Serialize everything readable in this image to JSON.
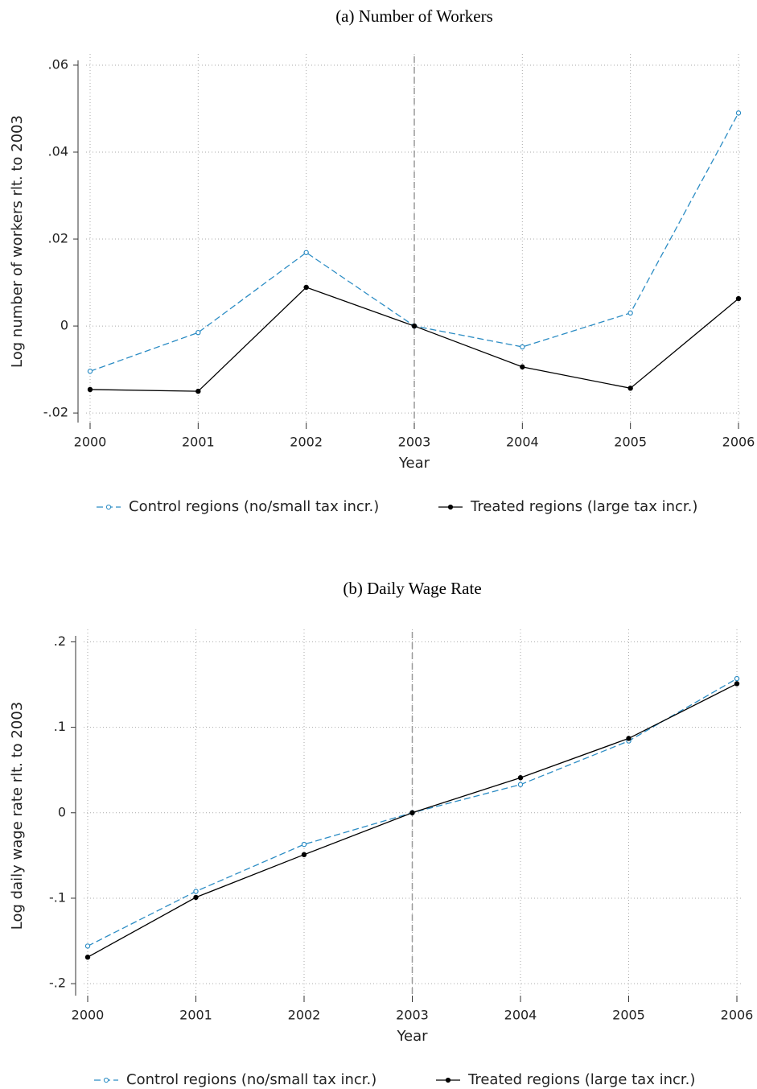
{
  "chart_data": [
    {
      "type": "line",
      "title": "(a) Number of Workers",
      "x_label": "Year",
      "y_label": "Log number of workers rlt. to 2003",
      "x": [
        2000,
        2001,
        2002,
        2003,
        2004,
        2005,
        2006
      ],
      "series": [
        {
          "name": "Control regions (no/small tax incr.)",
          "color": "#2b8cc4",
          "linestyle": "dashed",
          "marker": "hollow",
          "values": [
            -0.0104,
            -0.0015,
            0.0169,
            0,
            -0.0048,
            0.003,
            0.049
          ]
        },
        {
          "name": "Treated regions (large tax incr.)",
          "color": "#000000",
          "linestyle": "solid",
          "marker": "filled",
          "values": [
            -0.0146,
            -0.015,
            0.0089,
            0,
            -0.0094,
            -0.0143,
            0.0063
          ]
        }
      ],
      "xlim": [
        2000,
        2006
      ],
      "xticks": [
        2000,
        2001,
        2002,
        2003,
        2004,
        2005,
        2006
      ],
      "ylim": [
        -0.0222,
        0.0611
      ],
      "yticks": [
        {
          "value": -0.02,
          "label": "-.02"
        },
        0,
        {
          "value": 0.02,
          "label": ".02"
        },
        {
          "value": 0.04,
          "label": ".04"
        },
        {
          "value": 0.06,
          "label": ".06"
        }
      ],
      "vline": 2003,
      "grid": true,
      "legend": "bottom"
    },
    {
      "type": "line",
      "title": "(b) Daily Wage Rate",
      "x_label": "Year",
      "y_label": "Log daily wage rate rlt. to 2003",
      "x": [
        2000,
        2001,
        2002,
        2003,
        2004,
        2005,
        2006
      ],
      "series": [
        {
          "name": "Control regions (no/small tax incr.)",
          "color": "#2b8cc4",
          "linestyle": "dashed",
          "marker": "hollow",
          "values": [
            -0.156,
            -0.092,
            -0.037,
            0,
            0.033,
            0.084,
            0.157
          ]
        },
        {
          "name": "Treated regions (large tax incr.)",
          "color": "#000000",
          "linestyle": "solid",
          "marker": "filled",
          "values": [
            -0.169,
            -0.099,
            -0.049,
            0,
            0.041,
            0.087,
            0.151
          ]
        }
      ],
      "xlim": [
        2000,
        2006
      ],
      "xticks": [
        2000,
        2001,
        2002,
        2003,
        2004,
        2005,
        2006
      ],
      "ylim": [
        -0.214,
        0.207
      ],
      "yticks": [
        {
          "value": -0.2,
          "label": "-.2"
        },
        {
          "value": -0.1,
          "label": "-.1"
        },
        0,
        {
          "value": 0.1,
          "label": ".1"
        },
        {
          "value": 0.2,
          "label": ".2"
        }
      ],
      "vline": 2003,
      "grid": true,
      "legend": "bottom"
    }
  ]
}
